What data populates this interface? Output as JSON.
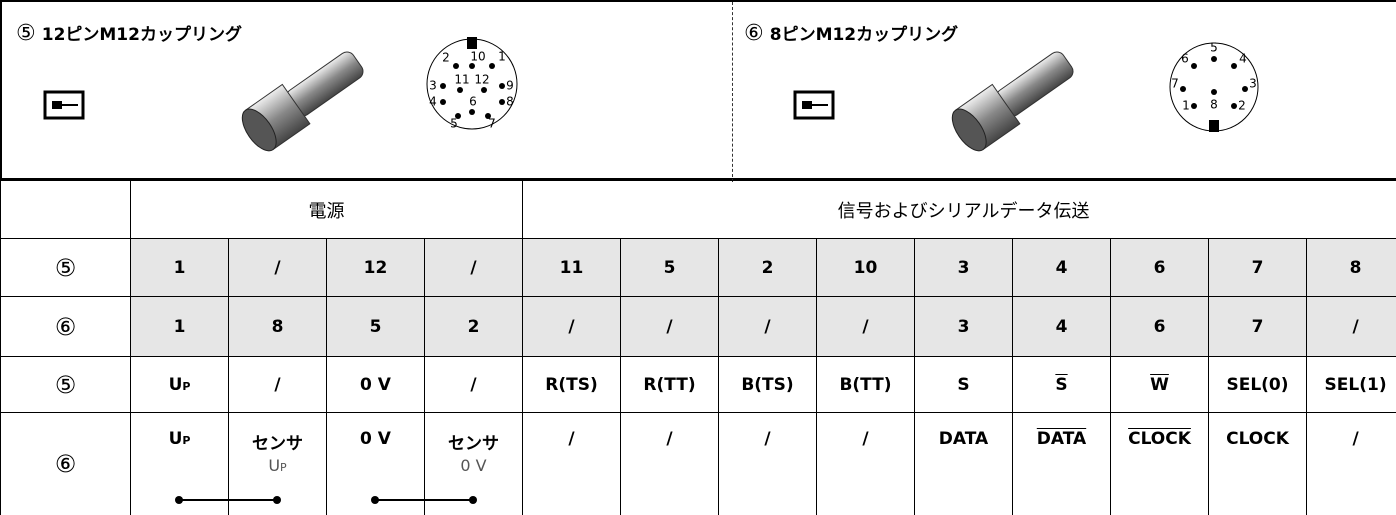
{
  "connectors": [
    {
      "number": "⑤",
      "title": "12ピンM12カップリング",
      "pins": [
        "1",
        "2",
        "3",
        "4",
        "5",
        "6",
        "7",
        "8",
        "9",
        "10",
        "11",
        "12"
      ]
    },
    {
      "number": "⑥",
      "title": "8ピンM12カップリング",
      "pins": [
        "1",
        "2",
        "3",
        "4",
        "5",
        "6",
        "7",
        "8"
      ]
    }
  ],
  "table": {
    "header": [
      "電源",
      "信号およびシリアルデータ伝送"
    ],
    "rows": [
      {
        "label": "⑤",
        "cells": [
          "1",
          "/",
          "12",
          "/",
          "11",
          "5",
          "2",
          "10",
          "3",
          "4",
          "6",
          "7",
          "8"
        ]
      },
      {
        "label": "⑥",
        "cells": [
          "1",
          "8",
          "5",
          "2",
          "/",
          "/",
          "/",
          "/",
          "3",
          "4",
          "6",
          "7",
          "/"
        ]
      },
      {
        "label": "⑤",
        "cells": [
          [
            "U",
            "P"
          ],
          "/",
          "0 V",
          "/",
          "R(TS)",
          "R(TT)",
          "B(TS)",
          "B(TT)",
          "S",
          "S",
          "W",
          "SEL(0)",
          "SEL(1)"
        ]
      },
      {
        "label": "⑥",
        "cells": [
          [
            "U",
            "P"
          ],
          "センサ",
          "0 V",
          "センサ",
          "/",
          "/",
          "/",
          "/",
          "DATA",
          "DATA",
          "CLOCK",
          "CLOCK",
          "/"
        ],
        "notes": [
          [
            "U",
            "P"
          ],
          "0 V"
        ]
      }
    ]
  }
}
